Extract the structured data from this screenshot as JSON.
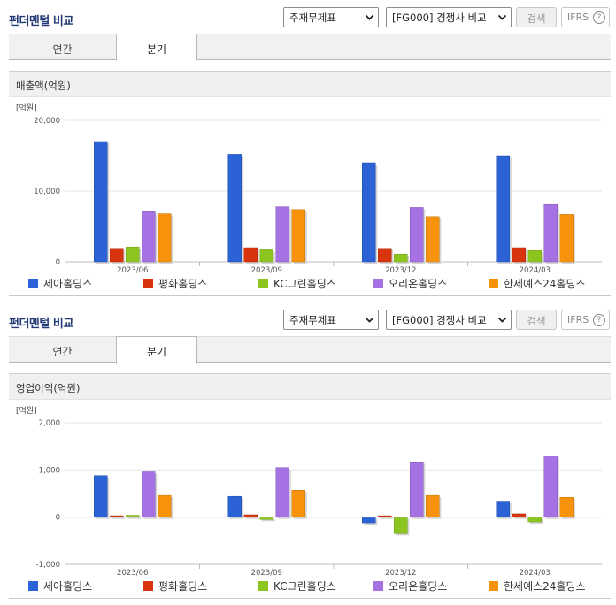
{
  "panels": [
    {
      "title": "펀더멘털 비교",
      "select_statement": "주재무제표",
      "select_compare": "[FG000] 경쟁사 비교",
      "search_label": "검색",
      "ifrs_label": "IFRS",
      "ifrs_help": "?",
      "tabs": [
        "연간",
        "분기"
      ],
      "active_tab": 1,
      "metric_title": "매출액(억원)",
      "chart_data": {
        "type": "bar",
        "unit_label": "[억원]",
        "categories": [
          "2023/06",
          "2023/09",
          "2023/12",
          "2024/03"
        ],
        "ylim": [
          0,
          20000
        ],
        "yticks": [
          0,
          10000,
          20000
        ],
        "ytick_labels": [
          "0",
          "10,000",
          "20,000"
        ],
        "series": [
          {
            "name": "세아홀딩스",
            "color": "#2b63d6",
            "values": [
              17000,
              15200,
              14000,
              15000
            ]
          },
          {
            "name": "평화홀딩스",
            "color": "#d8350f",
            "values": [
              1900,
              2000,
              1900,
              2000
            ]
          },
          {
            "name": "KC그린홀딩스",
            "color": "#8cc51f",
            "values": [
              2100,
              1700,
              1100,
              1600
            ]
          },
          {
            "name": "오리온홀딩스",
            "color": "#a671e2",
            "values": [
              7100,
              7800,
              7700,
              8100
            ]
          },
          {
            "name": "한세예스24홀딩스",
            "color": "#f6920b",
            "values": [
              6800,
              7400,
              6400,
              6700
            ]
          }
        ],
        "legend_position": "bottom"
      }
    },
    {
      "title": "펀더멘털 비교",
      "select_statement": "주재무제표",
      "select_compare": "[FG000] 경쟁사 비교",
      "search_label": "검색",
      "ifrs_label": "IFRS",
      "ifrs_help": "?",
      "tabs": [
        "연간",
        "분기"
      ],
      "active_tab": 1,
      "metric_title": "영업이익(억원)",
      "chart_data": {
        "type": "bar",
        "unit_label": "[억원]",
        "categories": [
          "2023/06",
          "2023/09",
          "2023/12",
          "2024/03"
        ],
        "ylim": [
          -1000,
          2000
        ],
        "yticks": [
          -1000,
          0,
          1000,
          2000
        ],
        "ytick_labels": [
          "-1,000",
          "0",
          "1,000",
          "2,000"
        ],
        "series": [
          {
            "name": "세아홀딩스",
            "color": "#2b63d6",
            "values": [
              880,
              440,
              -120,
              340
            ]
          },
          {
            "name": "평화홀딩스",
            "color": "#d8350f",
            "values": [
              30,
              50,
              30,
              70
            ]
          },
          {
            "name": "KC그린홀딩스",
            "color": "#8cc51f",
            "values": [
              40,
              -50,
              -350,
              -100
            ]
          },
          {
            "name": "오리온홀딩스",
            "color": "#a671e2",
            "values": [
              960,
              1050,
              1170,
              1300
            ]
          },
          {
            "name": "한세예스24홀딩스",
            "color": "#f6920b",
            "values": [
              460,
              570,
              460,
              420
            ]
          }
        ],
        "legend_position": "bottom"
      }
    }
  ]
}
